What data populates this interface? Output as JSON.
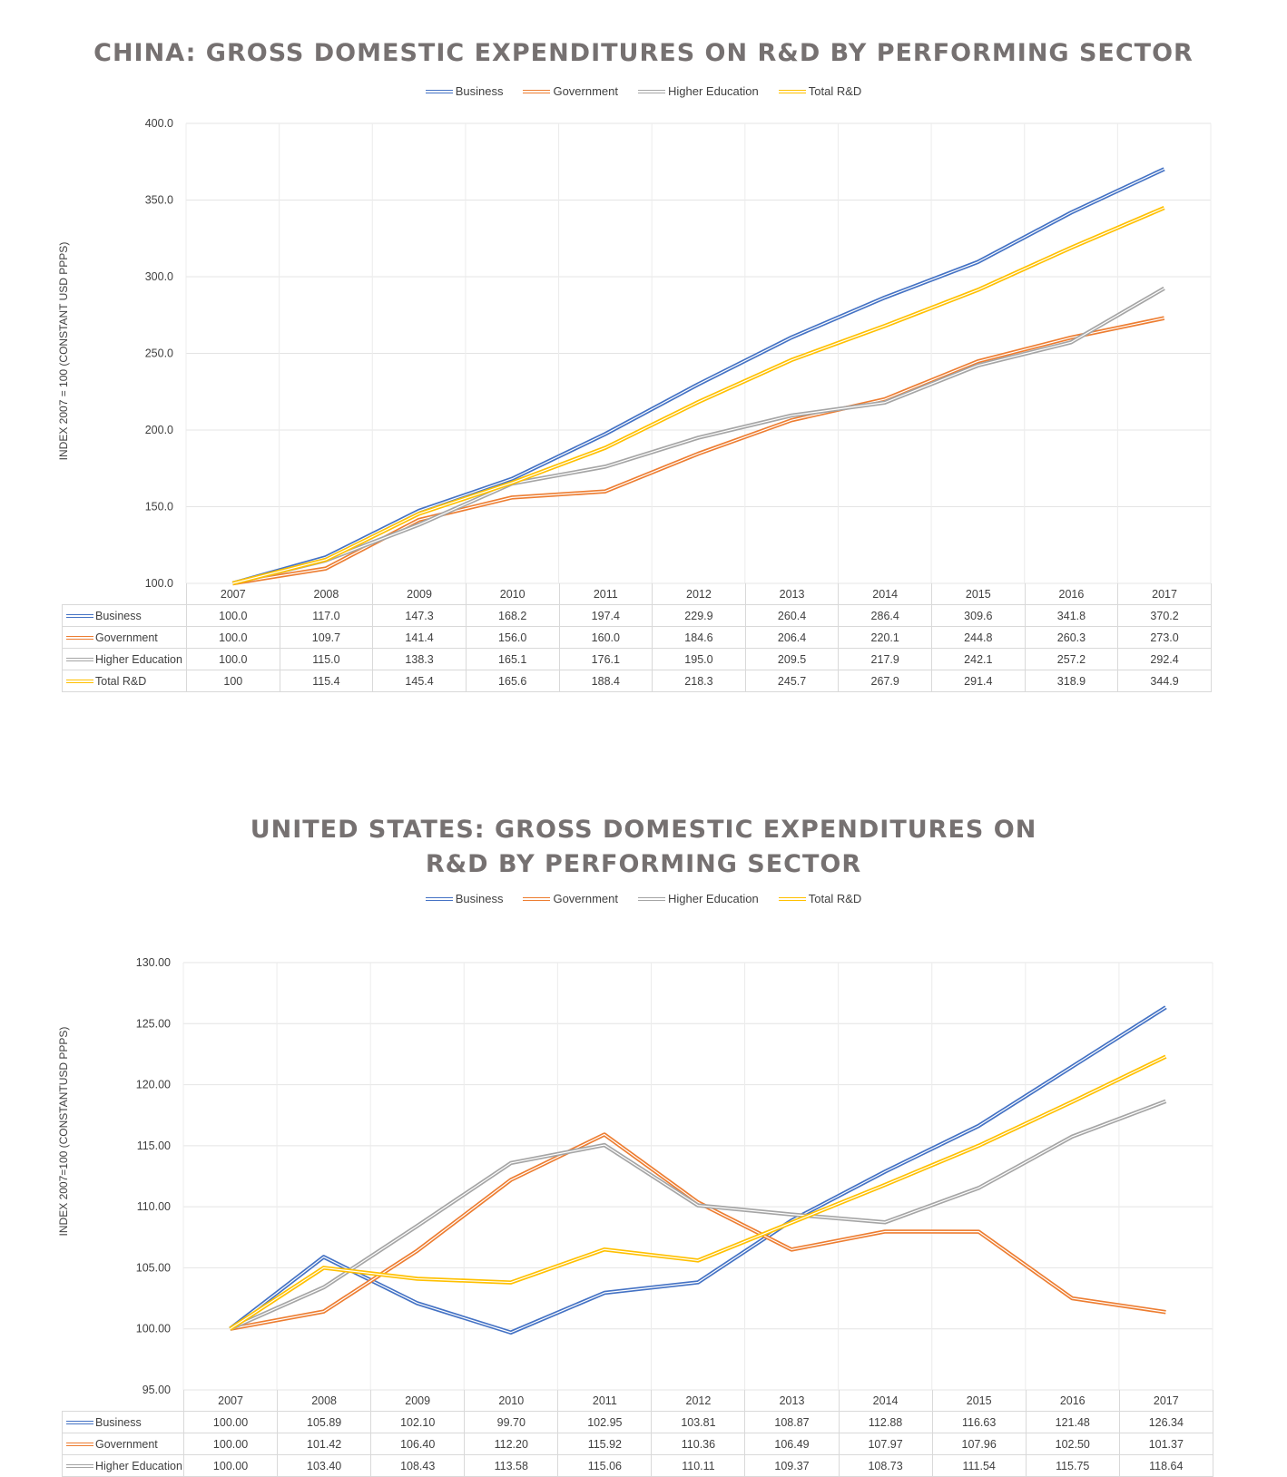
{
  "chart_data": [
    {
      "type": "line",
      "title": "CHINA: GROSS DOMESTIC EXPENDITURES ON R&D BY PERFORMING SECTOR",
      "ylabel": "INDEX 2007 = 100 (CONSTANT USD PPPS)",
      "ylim": [
        100,
        400
      ],
      "yticks": [
        "100.0",
        "150.0",
        "200.0",
        "250.0",
        "300.0",
        "350.0",
        "400.0"
      ],
      "categories": [
        "2007",
        "2008",
        "2009",
        "2010",
        "2011",
        "2012",
        "2013",
        "2014",
        "2015",
        "2016",
        "2017"
      ],
      "legend_position": "top",
      "series": [
        {
          "name": "Business",
          "color": "#4472c4",
          "values": [
            100.0,
            117.0,
            147.3,
            168.2,
            197.4,
            229.9,
            260.4,
            286.4,
            309.6,
            341.8,
            370.2
          ],
          "labels": [
            "100.0",
            "117.0",
            "147.3",
            "168.2",
            "197.4",
            "229.9",
            "260.4",
            "286.4",
            "309.6",
            "341.8",
            "370.2"
          ]
        },
        {
          "name": "Government",
          "color": "#ed7d31",
          "values": [
            100.0,
            109.7,
            141.4,
            156.0,
            160.0,
            184.6,
            206.4,
            220.1,
            244.8,
            260.3,
            273.0
          ],
          "labels": [
            "100.0",
            "109.7",
            "141.4",
            "156.0",
            "160.0",
            "184.6",
            "206.4",
            "220.1",
            "244.8",
            "260.3",
            "273.0"
          ]
        },
        {
          "name": "Higher Education",
          "color": "#a5a5a5",
          "values": [
            100.0,
            115.0,
            138.3,
            165.1,
            176.1,
            195.0,
            209.5,
            217.9,
            242.1,
            257.2,
            292.4
          ],
          "labels": [
            "100.0",
            "115.0",
            "138.3",
            "165.1",
            "176.1",
            "195.0",
            "209.5",
            "217.9",
            "242.1",
            "257.2",
            "292.4"
          ]
        },
        {
          "name": "Total R&D",
          "color": "#ffc000",
          "values": [
            100,
            115.4,
            145.4,
            165.6,
            188.4,
            218.3,
            245.7,
            267.9,
            291.4,
            318.9,
            344.9
          ],
          "labels": [
            "100",
            "115.4",
            "145.4",
            "165.6",
            "188.4",
            "218.3",
            "245.7",
            "267.9",
            "291.4",
            "318.9",
            "344.9"
          ]
        }
      ]
    },
    {
      "type": "line",
      "title": "UNITED STATES: GROSS DOMESTIC EXPENDITURES ON R&D BY PERFORMING SECTOR",
      "ylabel": "INDEX 2007=100 (CONSTANTUSD PPPS)",
      "ylim": [
        95,
        130
      ],
      "yticks": [
        "95.00",
        "100.00",
        "105.00",
        "110.00",
        "115.00",
        "120.00",
        "125.00",
        "130.00"
      ],
      "categories": [
        "2007",
        "2008",
        "2009",
        "2010",
        "2011",
        "2012",
        "2013",
        "2014",
        "2015",
        "2016",
        "2017"
      ],
      "legend_position": "top",
      "series": [
        {
          "name": "Business",
          "color": "#4472c4",
          "values": [
            100.0,
            105.89,
            102.1,
            99.7,
            102.95,
            103.81,
            108.87,
            112.88,
            116.63,
            121.48,
            126.34
          ],
          "labels": [
            "100.00",
            "105.89",
            "102.10",
            "99.70",
            "102.95",
            "103.81",
            "108.87",
            "112.88",
            "116.63",
            "121.48",
            "126.34"
          ]
        },
        {
          "name": "Government",
          "color": "#ed7d31",
          "values": [
            100.0,
            101.42,
            106.4,
            112.2,
            115.92,
            110.36,
            106.49,
            107.97,
            107.96,
            102.5,
            101.37
          ],
          "labels": [
            "100.00",
            "101.42",
            "106.40",
            "112.20",
            "115.92",
            "110.36",
            "106.49",
            "107.97",
            "107.96",
            "102.50",
            "101.37"
          ]
        },
        {
          "name": "Higher Education",
          "color": "#a5a5a5",
          "values": [
            100.0,
            103.4,
            108.43,
            113.58,
            115.06,
            110.11,
            109.37,
            108.73,
            111.54,
            115.75,
            118.64
          ],
          "labels": [
            "100.00",
            "103.40",
            "108.43",
            "113.58",
            "115.06",
            "110.11",
            "109.37",
            "108.73",
            "111.54",
            "115.75",
            "118.64"
          ]
        },
        {
          "name": "Total R&D",
          "color": "#ffc000",
          "values": [
            100.0,
            105.0,
            104.1,
            103.8,
            106.5,
            105.6,
            108.7,
            111.8,
            115.0,
            118.6,
            122.3
          ],
          "labels": [],
          "in_table": false
        }
      ]
    }
  ]
}
